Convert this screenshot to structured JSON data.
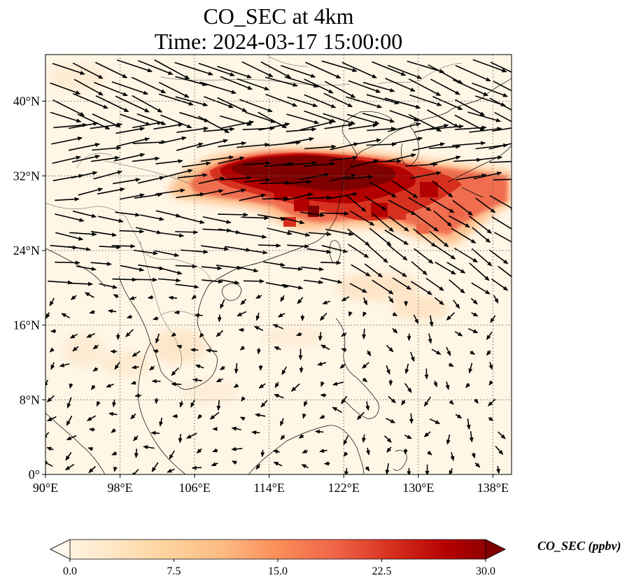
{
  "title": {
    "line1": "CO_SEC at 4km",
    "line2": "Time: 2024-03-17 15:00:00"
  },
  "map": {
    "extent": {
      "lon": [
        90,
        140
      ],
      "lat": [
        0,
        45
      ]
    },
    "lon_ticks": [
      {
        "value": 90,
        "label": "90°E"
      },
      {
        "value": 98,
        "label": "98°E"
      },
      {
        "value": 106,
        "label": "106°E"
      },
      {
        "value": 114,
        "label": "114°E"
      },
      {
        "value": 122,
        "label": "122°E"
      },
      {
        "value": 130,
        "label": "130°E"
      },
      {
        "value": 138,
        "label": "138°E"
      }
    ],
    "lat_ticks": [
      {
        "value": 0,
        "label": "0°"
      },
      {
        "value": 8,
        "label": "8°N"
      },
      {
        "value": 16,
        "label": "16°N"
      },
      {
        "value": 24,
        "label": "24°N"
      },
      {
        "value": 32,
        "label": "32°N"
      },
      {
        "value": 40,
        "label": "40°N"
      }
    ],
    "gridlines": true,
    "background_color": "#fff6e6",
    "plume_colors": [
      "#7f0000",
      "#b30000",
      "#d7301f",
      "#ef6548",
      "#fc8d59",
      "#fdbb84",
      "#fdd49e"
    ]
  },
  "colorbar": {
    "label": "CO_SEC (ppbv)",
    "min": 0.0,
    "max": 30.0,
    "extend": "both",
    "ticks": [
      "0.0",
      "7.5",
      "15.0",
      "22.5",
      "30.0"
    ],
    "colors": [
      "#fff7ec",
      "#fee8c8",
      "#fdd49e",
      "#fdbb84",
      "#fc8d59",
      "#ef6548",
      "#d7301f",
      "#b30000",
      "#7f0000"
    ]
  }
}
